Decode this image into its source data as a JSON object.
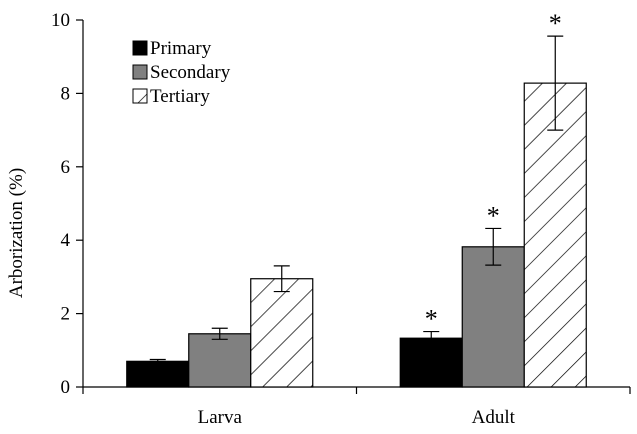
{
  "chart_data": {
    "type": "bar",
    "title": "",
    "xlabel": "",
    "ylabel": "Arborization (%)",
    "ylim": [
      0,
      10
    ],
    "yticks": [
      "0",
      "2",
      "4",
      "6",
      "8",
      "10"
    ],
    "categories": [
      "Larva",
      "Adult"
    ],
    "grid": false,
    "legend_position": "top-left",
    "series": [
      {
        "name": "Primary",
        "fill": "solid-black",
        "color": "#000000",
        "values": [
          0.7,
          1.33
        ],
        "errors": [
          0.05,
          0.18
        ],
        "significance": [
          "",
          "*"
        ]
      },
      {
        "name": "Secondary",
        "fill": "solid-gray",
        "color": "#808080",
        "values": [
          1.45,
          3.82
        ],
        "errors": [
          0.15,
          0.5
        ],
        "significance": [
          "",
          "*"
        ]
      },
      {
        "name": "Tertiary",
        "fill": "diagonal-hatch",
        "color": "#ffffff",
        "values": [
          2.95,
          8.28
        ],
        "errors": [
          0.35,
          1.28
        ],
        "significance": [
          "",
          "*"
        ]
      }
    ]
  }
}
